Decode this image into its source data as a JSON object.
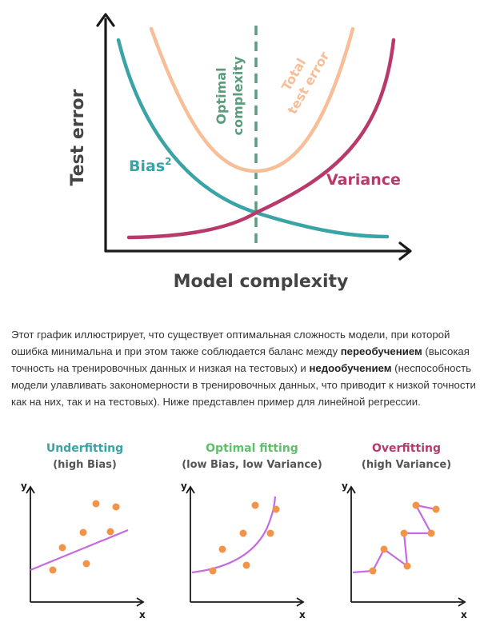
{
  "colors": {
    "axis": "#1a1a1a",
    "bias": "#3aa3a6",
    "variance": "#b8396b",
    "total": "#f7be98",
    "optimal": "#5a9c7c",
    "dots": "#f3934a",
    "fitline": "#c46be0",
    "text": "#333333",
    "underfit_title": "#3aa3a6",
    "optimal_title": "#5fbf6a",
    "overfit_title": "#b8396b"
  },
  "tradeoff": {
    "y_axis_label": "Test error",
    "x_axis_label": "Model complexity",
    "bias_label": "Bias",
    "bias_sup": "2",
    "variance_label": "Variance",
    "total_label_line1": "Total",
    "total_label_line2": "test error",
    "optimal_label_line1": "Optimal",
    "optimal_label_line2": "complexity"
  },
  "explanation": {
    "part1": "Этот график иллюстрирует, что существует оптимальная сложность модели, при которой ошибка минимальна и при этом также соблюдается баланс между ",
    "bold1": "переобучением",
    "part2": " (высокая точность на тренировочных данных и низкая на тестовых) и ",
    "bold2": "недообучением",
    "part3": " (неспособность модели улавливать закономерности в тренировочных данных, что приводит к низкой точности как на них, так и на тестовых). Ниже представлен пример для линейной регрессии."
  },
  "panels": [
    {
      "title": "Underfitting",
      "subtitle": "(high Bias)",
      "x_label": "x",
      "y_label": "y"
    },
    {
      "title": "Optimal fitting",
      "subtitle": "(low Bias, low Variance)",
      "x_label": "x",
      "y_label": "y"
    },
    {
      "title": "Overfitting",
      "subtitle": "(high Variance)",
      "x_label": "x",
      "y_label": "y"
    }
  ]
}
